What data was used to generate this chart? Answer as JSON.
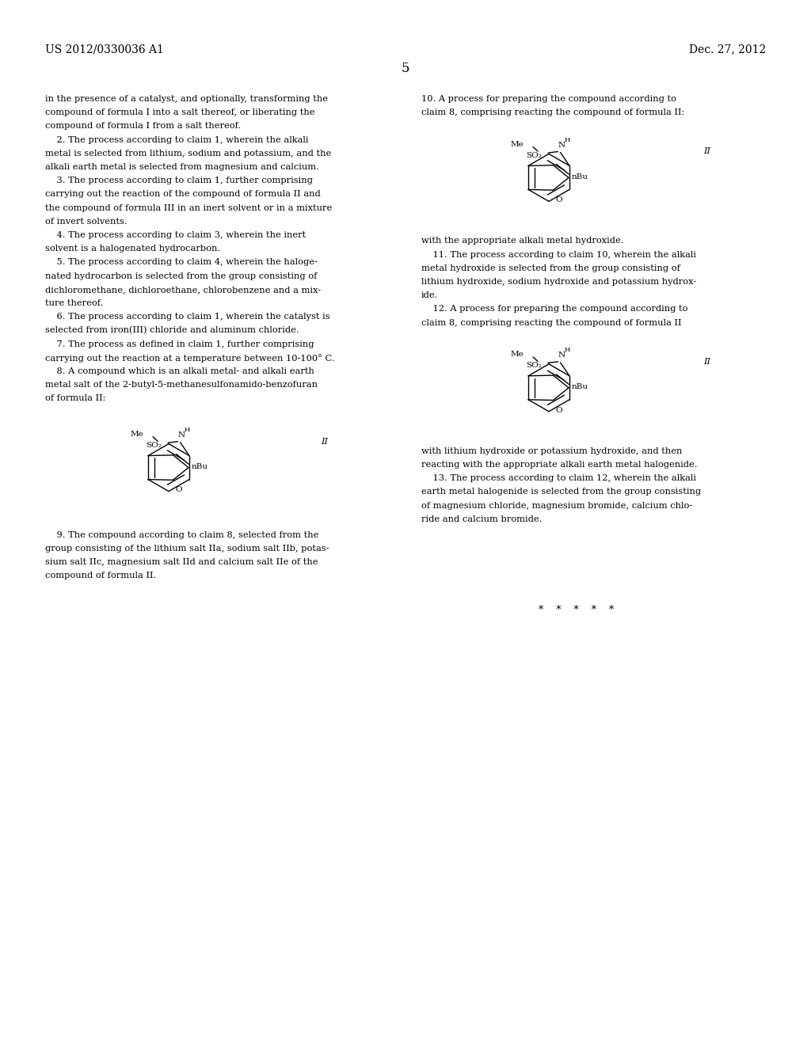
{
  "bg_color": "#ffffff",
  "header_left": "US 2012/0330036 A1",
  "header_right": "Dec. 27, 2012",
  "page_number": "5",
  "font_size_body": 8.2,
  "font_size_header": 10.0,
  "left_text_lines": [
    "in the presence of a catalyst, and optionally, transforming the",
    "compound of formula I into a salt thereof, or liberating the",
    "compound of formula I from a salt thereof.",
    "    2. The process according to claim 1, wherein the alkali",
    "metal is selected from lithium, sodium and potassium, and the",
    "alkali earth metal is selected from magnesium and calcium.",
    "    3. The process according to claim 1, further comprising",
    "carrying out the reaction of the compound of formula II and",
    "the compound of formula III in an inert solvent or in a mixture",
    "of invert solvents.",
    "    4. The process according to claim 3, wherein the inert",
    "solvent is a halogenated hydrocarbon.",
    "    5. The process according to claim 4, wherein the haloge-",
    "nated hydrocarbon is selected from the group consisting of",
    "dichloromethane, dichloroethane, chlorobenzene and a mix-",
    "ture thereof.",
    "    6. The process according to claim 1, wherein the catalyst is",
    "selected from iron(III) chloride and aluminum chloride.",
    "    7. The process as defined in claim 1, further comprising",
    "carrying out the reaction at a temperature between 10-100° C.",
    "    8. A compound which is an alkali metal- and alkali earth",
    "metal salt of the 2-butyl-5-methanesulfonamido-benzofuran",
    "of formula II:"
  ],
  "right_text_top_lines": [
    "10. A process for preparing the compound according to",
    "claim 8, comprising reacting the compound of formula II:"
  ],
  "right_text_mid_lines": [
    "with the appropriate alkali metal hydroxide.",
    "    11. The process according to claim 10, wherein the alkali",
    "metal hydroxide is selected from the group consisting of",
    "lithium hydroxide, sodium hydroxide and potassium hydrox-",
    "ide.",
    "    12. A process for preparing the compound according to",
    "claim 8, comprising reacting the compound of formula II"
  ],
  "right_text_bot_lines": [
    "with lithium hydroxide or potassium hydroxide, and then",
    "reacting with the appropriate alkali earth metal halogenide.",
    "    13. The process according to claim 12, wherein the alkali",
    "earth metal halogenide is selected from the group consisting",
    "of magnesium chloride, magnesium bromide, calcium chlo-",
    "ride and calcium bromide."
  ],
  "claim9_lines": [
    "    9. The compound according to claim 8, selected from the",
    "group consisting of the lithium salt IIa, sodium salt IIb, potas-",
    "sium salt IIc, magnesium salt IId and calcium salt IIe of the",
    "compound of formula II."
  ],
  "stars": "*    *    *    *    *"
}
